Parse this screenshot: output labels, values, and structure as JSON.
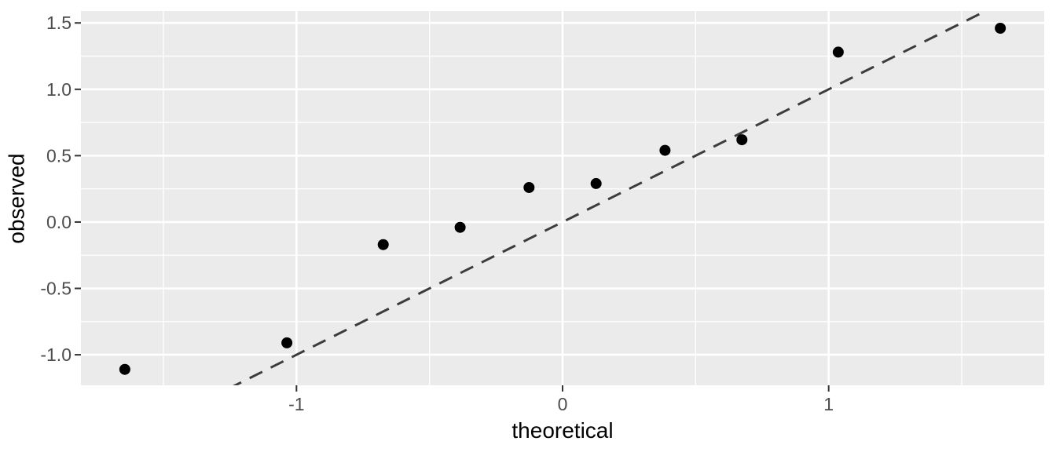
{
  "chart_data": {
    "type": "scatter",
    "subtype": "qq-plot",
    "title": "",
    "xlabel": "theoretical",
    "ylabel": "observed",
    "grid": true,
    "legend": false,
    "xlim": [
      -1.81,
      1.81
    ],
    "ylim": [
      -1.23,
      1.59
    ],
    "points": [
      {
        "x": -1.645,
        "y": -1.11
      },
      {
        "x": -1.036,
        "y": -0.91
      },
      {
        "x": -0.674,
        "y": -0.17
      },
      {
        "x": -0.385,
        "y": -0.04
      },
      {
        "x": -0.126,
        "y": 0.26
      },
      {
        "x": 0.126,
        "y": 0.29
      },
      {
        "x": 0.385,
        "y": 0.54
      },
      {
        "x": 0.674,
        "y": 0.62
      },
      {
        "x": 1.036,
        "y": 1.28
      },
      {
        "x": 1.645,
        "y": 1.46
      }
    ],
    "reference_line": {
      "slope": 1,
      "intercept": 0,
      "style": "dashed"
    },
    "x_ticks": {
      "values": [
        -1,
        0,
        1
      ],
      "labels": [
        "-1",
        "0",
        "1"
      ],
      "minor": [
        -1.5,
        -0.5,
        0.5,
        1.5
      ]
    },
    "y_ticks": {
      "values": [
        1.5,
        1.0,
        0.5,
        0.0,
        -0.5,
        -1.0
      ],
      "labels": [
        "1.5",
        "1.0",
        "0.5",
        "0.0",
        "-0.5",
        "-1.0"
      ],
      "minor": [
        1.25,
        0.75,
        0.25,
        -0.25,
        -0.75
      ]
    },
    "colors": {
      "page_bg": "#FFFFFF",
      "panel_bg": "#EBEBEB",
      "grid": "#FFFFFF",
      "point": "#000000",
      "reference_line": "#3C3C3C",
      "tick_label": "#4D4D4D",
      "tick_mark": "#333333",
      "axis_title": "#000000"
    }
  }
}
